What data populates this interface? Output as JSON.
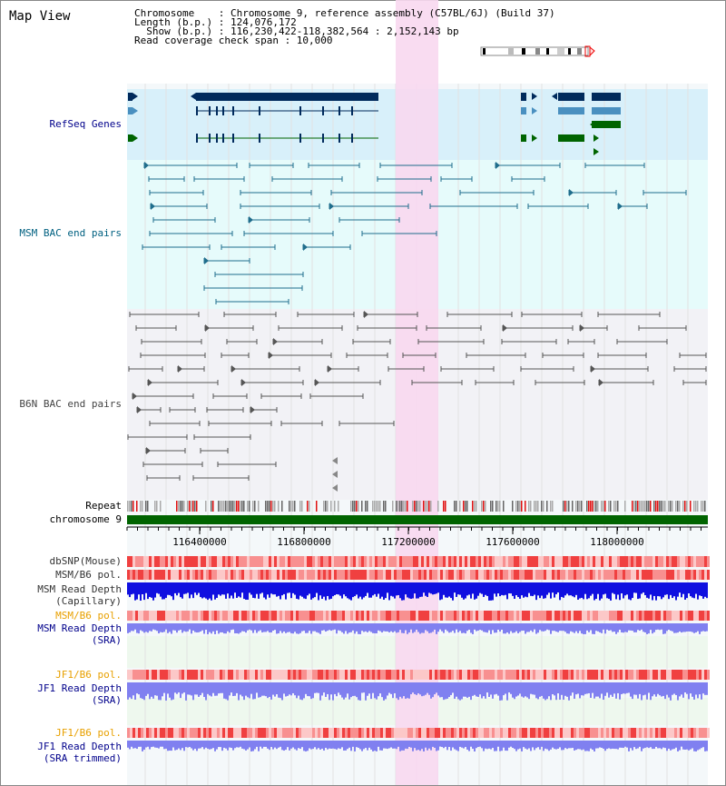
{
  "title": "Map View",
  "info": {
    "chromosome": "Chromosome    : Chromosome 9, reference assembly (C57BL/6J) (Build 37)",
    "length": "Length (b.p.) : 124,076,172",
    "show": "  Show (b.p.) : 116,230,422-118,382,564 : 2,152,143 bp",
    "coverage": "Read coverage check span : 10,000"
  },
  "tracks": {
    "refseq": "RefSeq Genes",
    "msm_bac": "MSM BAC end pairs",
    "b6n_bac": "B6N BAC end pairs",
    "repeat": "Repeat",
    "chromosome": "chromosome 9",
    "dbsnp": "dbSNP(Mouse)",
    "msm_b6_pol": "MSM/B6 pol.",
    "msm_depth_cap_1": "MSM Read Depth",
    "msm_depth_cap_2": "(Capillary)",
    "msm_b6_pol2": "MSM/B6 pol.",
    "msm_depth_sra_1": "MSM Read Depth",
    "msm_depth_sra_2": "(SRA)",
    "jf1_b6_pol": "JF1/B6 pol.",
    "jf1_depth_sra_1": "JF1 Read Depth",
    "jf1_depth_sra_2": "(SRA)",
    "jf1_b6_pol2": "JF1/B6 pol.",
    "jf1_depth_trim_1": "JF1 Read Depth",
    "jf1_depth_trim_2": "(SRA trimmed)"
  },
  "ruler": {
    "ticks": [
      "116400000",
      "116800000",
      "117200000",
      "117600000",
      "118000000"
    ]
  },
  "colors": {
    "highlight": "#f8d8f0",
    "refseq_bg": "#d8f0fa",
    "refseq_dark": "#002a5c",
    "refseq_light": "#4a90c0",
    "refseq_green": "#006400",
    "msm_bac": "#1f6d8c",
    "b6n_bac": "#555555",
    "chromosome": "#006400",
    "depth_blue": "#1010e0",
    "depth_light": "#8080f0"
  }
}
